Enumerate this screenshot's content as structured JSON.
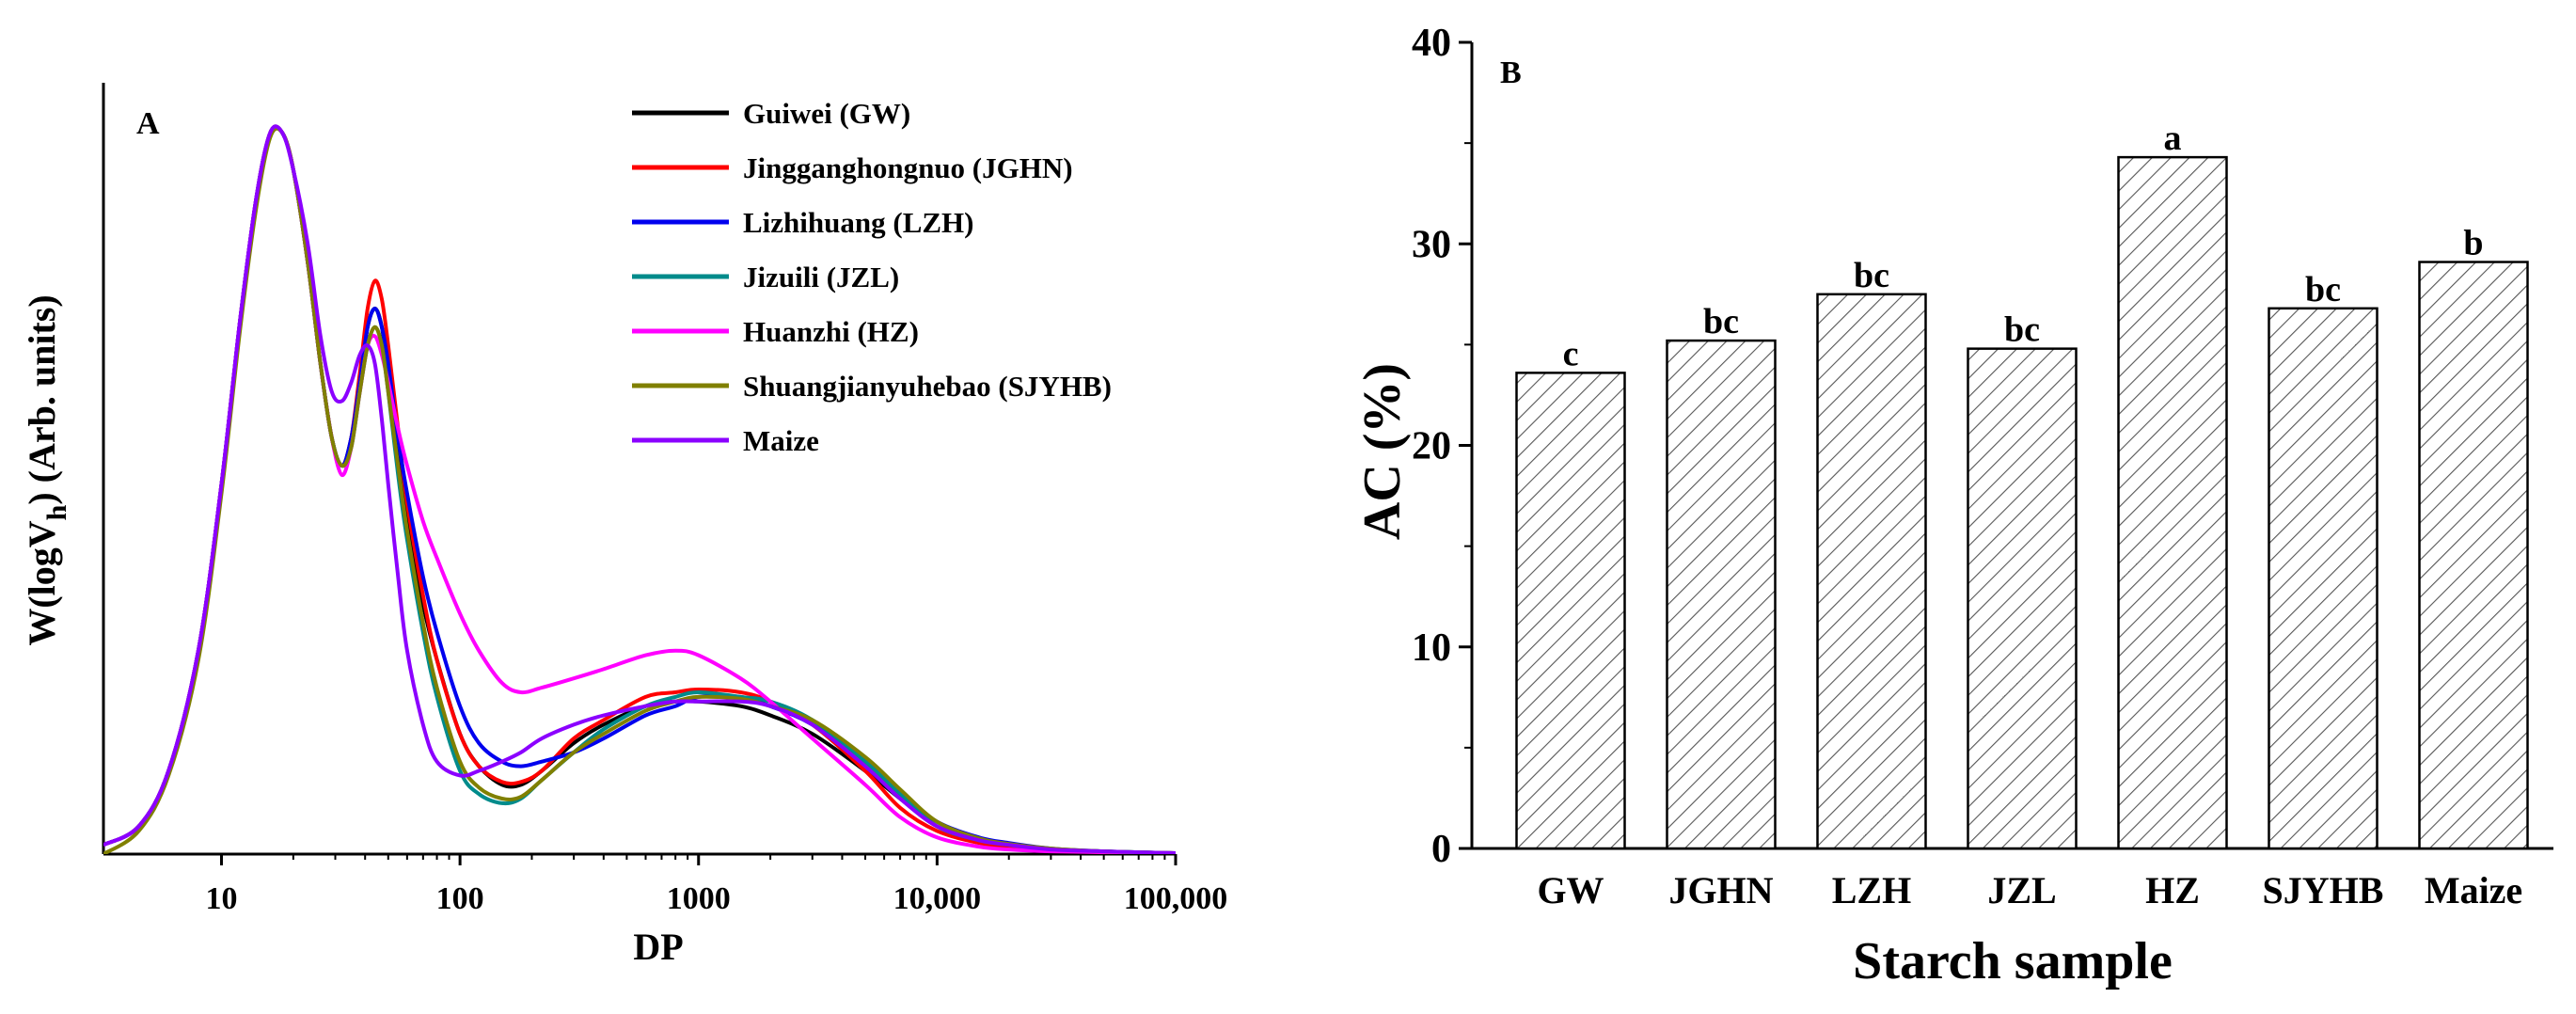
{
  "chart_data": [
    {
      "type": "line",
      "panel_label": "A",
      "title": "",
      "xlabel": "DP",
      "ylabel_prefix": "W(logV",
      "ylabel_sub": "h",
      "ylabel_suffix": ") (Arb. units)",
      "xscale": "log",
      "xlim": [
        3.2,
        100000
      ],
      "ylim": [
        0,
        1.0
      ],
      "xtick_values": [
        10,
        100,
        1000,
        10000,
        100000
      ],
      "xtick_labels": [
        "10",
        "100",
        "1000",
        "10,000",
        "100,000"
      ],
      "ytick_labels": [],
      "legend_position": "top-right",
      "series": [
        {
          "name": "Guiwei (GW)",
          "color": "#000000",
          "x": [
            3.2,
            4.5,
            6,
            8,
            10,
            12,
            14,
            16,
            18,
            20,
            23,
            26,
            29,
            32,
            35,
            38,
            41,
            44,
            47,
            50,
            55,
            60,
            70,
            80,
            100,
            120,
            150,
            180,
            220,
            300,
            400,
            600,
            800,
            1000,
            1500,
            2000,
            3000,
            5000,
            7000,
            10000,
            15000,
            20000,
            30000,
            50000,
            100000
          ],
          "y": [
            0.01,
            0.03,
            0.09,
            0.22,
            0.4,
            0.58,
            0.71,
            0.78,
            0.78,
            0.74,
            0.64,
            0.53,
            0.45,
            0.42,
            0.45,
            0.51,
            0.57,
            0.59,
            0.57,
            0.52,
            0.43,
            0.36,
            0.27,
            0.21,
            0.13,
            0.095,
            0.075,
            0.075,
            0.09,
            0.12,
            0.14,
            0.16,
            0.165,
            0.165,
            0.16,
            0.15,
            0.13,
            0.09,
            0.06,
            0.03,
            0.015,
            0.01,
            0.005,
            0.003,
            0.001
          ]
        },
        {
          "name": "Jingganghongnuo (JGHN)",
          "color": "#ff0000",
          "x": [
            3.2,
            4.5,
            6,
            8,
            10,
            12,
            14,
            16,
            18,
            20,
            23,
            26,
            29,
            32,
            35,
            38,
            41,
            44,
            47,
            50,
            55,
            60,
            70,
            80,
            100,
            120,
            150,
            180,
            220,
            300,
            400,
            600,
            800,
            1000,
            1500,
            2000,
            3000,
            5000,
            7000,
            10000,
            15000,
            20000,
            30000,
            50000,
            100000
          ],
          "y": [
            0.01,
            0.03,
            0.09,
            0.22,
            0.4,
            0.58,
            0.71,
            0.78,
            0.78,
            0.74,
            0.64,
            0.53,
            0.45,
            0.42,
            0.45,
            0.52,
            0.59,
            0.62,
            0.6,
            0.55,
            0.46,
            0.38,
            0.28,
            0.21,
            0.13,
            0.095,
            0.078,
            0.078,
            0.09,
            0.125,
            0.145,
            0.17,
            0.175,
            0.178,
            0.175,
            0.165,
            0.14,
            0.09,
            0.05,
            0.025,
            0.012,
            0.008,
            0.004,
            0.002,
            0.001
          ]
        },
        {
          "name": "Lizhihuang (LZH)",
          "color": "#0000ee",
          "x": [
            3.2,
            4.5,
            6,
            8,
            10,
            12,
            14,
            16,
            18,
            20,
            23,
            26,
            29,
            32,
            35,
            38,
            41,
            44,
            47,
            50,
            55,
            60,
            70,
            80,
            100,
            120,
            150,
            180,
            220,
            300,
            400,
            600,
            800,
            1000,
            1500,
            2000,
            3000,
            5000,
            7000,
            10000,
            15000,
            20000,
            30000,
            50000,
            100000
          ],
          "y": [
            0.01,
            0.03,
            0.09,
            0.22,
            0.4,
            0.58,
            0.71,
            0.78,
            0.78,
            0.74,
            0.64,
            0.53,
            0.45,
            0.42,
            0.45,
            0.51,
            0.57,
            0.59,
            0.57,
            0.53,
            0.45,
            0.39,
            0.3,
            0.24,
            0.16,
            0.12,
            0.1,
            0.095,
            0.1,
            0.11,
            0.125,
            0.15,
            0.16,
            0.17,
            0.17,
            0.16,
            0.14,
            0.1,
            0.065,
            0.035,
            0.018,
            0.012,
            0.006,
            0.003,
            0.001
          ]
        },
        {
          "name": "Jizuili (JZL)",
          "color": "#008b8b",
          "x": [
            3.2,
            4.5,
            6,
            8,
            10,
            12,
            14,
            16,
            18,
            20,
            23,
            26,
            29,
            32,
            35,
            38,
            41,
            44,
            47,
            50,
            55,
            60,
            70,
            80,
            100,
            120,
            150,
            180,
            220,
            300,
            400,
            600,
            800,
            1000,
            1500,
            2000,
            3000,
            5000,
            7000,
            10000,
            15000,
            20000,
            30000,
            50000,
            100000
          ],
          "y": [
            0.01,
            0.03,
            0.09,
            0.22,
            0.4,
            0.58,
            0.71,
            0.78,
            0.78,
            0.74,
            0.64,
            0.53,
            0.45,
            0.42,
            0.44,
            0.5,
            0.55,
            0.57,
            0.55,
            0.5,
            0.41,
            0.34,
            0.24,
            0.17,
            0.09,
            0.065,
            0.055,
            0.06,
            0.08,
            0.11,
            0.135,
            0.16,
            0.17,
            0.175,
            0.17,
            0.165,
            0.145,
            0.1,
            0.065,
            0.03,
            0.015,
            0.01,
            0.005,
            0.003,
            0.001
          ]
        },
        {
          "name": "Huanzhi (HZ)",
          "color": "#ff00ff",
          "x": [
            3.2,
            4.5,
            6,
            8,
            10,
            12,
            14,
            16,
            18,
            20,
            23,
            26,
            29,
            32,
            35,
            38,
            41,
            44,
            47,
            50,
            55,
            60,
            70,
            80,
            100,
            120,
            150,
            180,
            220,
            300,
            400,
            600,
            800,
            1000,
            1500,
            2000,
            3000,
            5000,
            7000,
            10000,
            15000,
            20000,
            30000,
            50000,
            100000
          ],
          "y": [
            0.01,
            0.03,
            0.09,
            0.22,
            0.4,
            0.58,
            0.71,
            0.78,
            0.78,
            0.74,
            0.64,
            0.53,
            0.45,
            0.41,
            0.44,
            0.5,
            0.55,
            0.56,
            0.54,
            0.51,
            0.46,
            0.42,
            0.36,
            0.32,
            0.26,
            0.22,
            0.185,
            0.175,
            0.18,
            0.19,
            0.2,
            0.215,
            0.22,
            0.215,
            0.19,
            0.165,
            0.125,
            0.075,
            0.04,
            0.018,
            0.008,
            0.005,
            0.003,
            0.002,
            0.001
          ]
        },
        {
          "name": "Shuangjianyuhebao (SJYHB)",
          "color": "#808000",
          "x": [
            3.2,
            4.5,
            6,
            8,
            10,
            12,
            14,
            16,
            18,
            20,
            23,
            26,
            29,
            32,
            35,
            38,
            41,
            44,
            47,
            50,
            55,
            60,
            70,
            80,
            100,
            120,
            150,
            180,
            220,
            300,
            400,
            600,
            800,
            1000,
            1500,
            2000,
            3000,
            5000,
            7000,
            10000,
            15000,
            20000,
            30000,
            50000,
            100000
          ],
          "y": [
            0.0,
            0.025,
            0.085,
            0.21,
            0.39,
            0.57,
            0.7,
            0.775,
            0.78,
            0.74,
            0.64,
            0.53,
            0.45,
            0.42,
            0.44,
            0.5,
            0.55,
            0.57,
            0.55,
            0.5,
            0.42,
            0.35,
            0.25,
            0.18,
            0.1,
            0.072,
            0.06,
            0.062,
            0.08,
            0.11,
            0.13,
            0.155,
            0.165,
            0.17,
            0.168,
            0.16,
            0.145,
            0.105,
            0.07,
            0.035,
            0.017,
            0.011,
            0.006,
            0.003,
            0.001
          ]
        },
        {
          "name": "Maize",
          "color": "#8b00ff",
          "x": [
            3.2,
            4.5,
            6,
            8,
            10,
            12,
            14,
            16,
            18,
            20,
            23,
            26,
            29,
            32,
            35,
            38,
            41,
            44,
            47,
            50,
            55,
            60,
            70,
            80,
            100,
            120,
            150,
            180,
            220,
            300,
            400,
            600,
            800,
            1000,
            1500,
            2000,
            3000,
            5000,
            7000,
            10000,
            15000,
            20000,
            30000,
            50000,
            100000
          ],
          "y": [
            0.01,
            0.03,
            0.09,
            0.22,
            0.4,
            0.58,
            0.71,
            0.78,
            0.78,
            0.74,
            0.66,
            0.56,
            0.5,
            0.49,
            0.51,
            0.54,
            0.55,
            0.53,
            0.47,
            0.4,
            0.3,
            0.22,
            0.14,
            0.1,
            0.085,
            0.09,
            0.1,
            0.11,
            0.125,
            0.14,
            0.15,
            0.16,
            0.165,
            0.165,
            0.165,
            0.16,
            0.14,
            0.095,
            0.06,
            0.03,
            0.015,
            0.01,
            0.005,
            0.003,
            0.001
          ]
        }
      ]
    },
    {
      "type": "bar",
      "panel_label": "B",
      "title": "",
      "xlabel": "Starch sample",
      "ylabel": "AC (%)",
      "ylim": [
        0,
        40
      ],
      "yticks": [
        0,
        10,
        20,
        30,
        40
      ],
      "ytick_labels": [
        "0",
        "10",
        "20",
        "30",
        "40"
      ],
      "categories": [
        "GW",
        "JGHN",
        "LZH",
        "JZL",
        "HZ",
        "SJYHB",
        "Maize"
      ],
      "values": [
        23.6,
        25.2,
        27.5,
        24.8,
        34.3,
        26.8,
        29.1
      ],
      "significance_labels": [
        "c",
        "bc",
        "bc",
        "bc",
        "a",
        "bc",
        "b"
      ],
      "bar_pattern": "diagonal-hatch"
    }
  ]
}
